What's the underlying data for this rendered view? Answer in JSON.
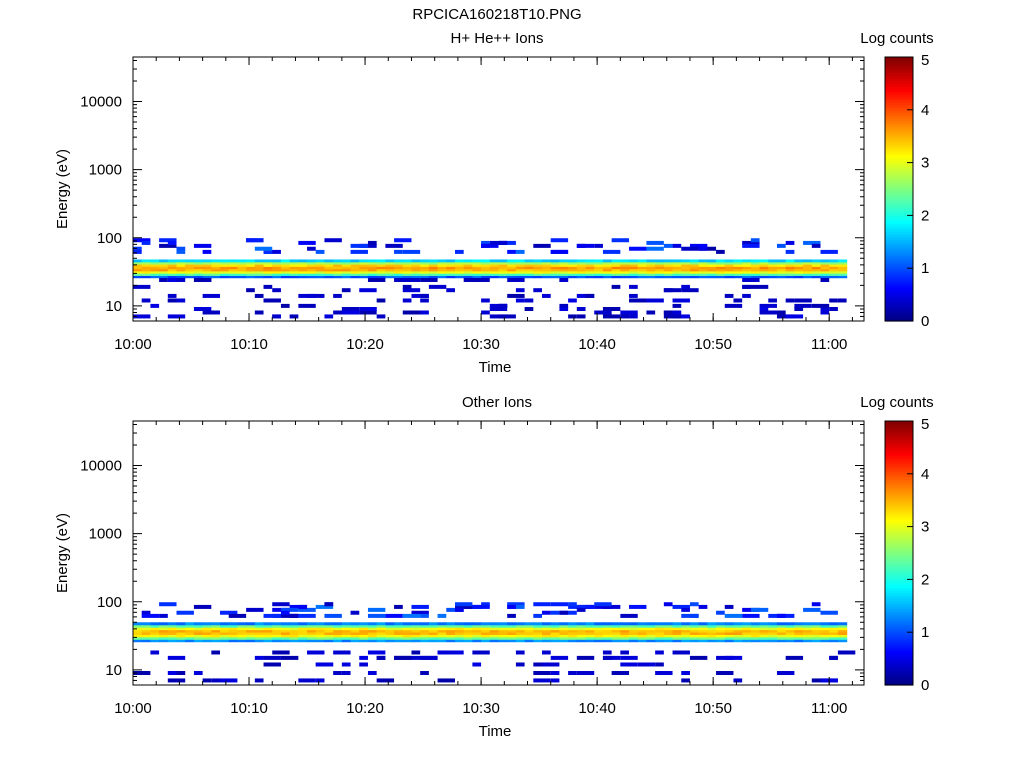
{
  "figure_title": "RPCICA160218T10.PNG",
  "chart_data": [
    {
      "type": "heatmap",
      "title": "H+ He++ Ions",
      "xlabel": "Time",
      "ylabel": "Energy (eV)",
      "x_ticks": [
        "10:00",
        "10:10",
        "10:20",
        "10:30",
        "10:40",
        "10:50",
        "11:00"
      ],
      "xlim": [
        "10:00",
        "11:03"
      ],
      "y_scale": "log",
      "y_ticks": [
        {
          "value": 10,
          "label": "10"
        },
        {
          "value": 100,
          "label": "100"
        },
        {
          "value": 1000,
          "label": "1000"
        },
        {
          "value": 10000,
          "label": "10000"
        }
      ],
      "ylim": [
        6,
        45000
      ],
      "colorbar": {
        "label": "Log counts",
        "ticks": [
          "0",
          "1",
          "2",
          "3",
          "4",
          "5"
        ],
        "range": [
          0,
          5
        ],
        "colormap": "jet"
      },
      "band": {
        "energy_eV": [
          26,
          48
        ],
        "peak_eV": 36,
        "peak_log_counts": 3.6
      },
      "sparse_energy_eV": [
        7,
        8,
        9,
        10,
        12,
        14,
        17,
        19,
        24,
        62,
        69,
        76,
        84,
        92
      ],
      "sparse_count": 200,
      "seed": 7
    },
    {
      "type": "heatmap",
      "title": "Other Ions",
      "xlabel": "Time",
      "ylabel": "Energy (eV)",
      "x_ticks": [
        "10:00",
        "10:10",
        "10:20",
        "10:30",
        "10:40",
        "10:50",
        "11:00"
      ],
      "xlim": [
        "10:00",
        "11:03"
      ],
      "y_scale": "log",
      "y_ticks": [
        {
          "value": 10,
          "label": "10"
        },
        {
          "value": 100,
          "label": "100"
        },
        {
          "value": 1000,
          "label": "1000"
        },
        {
          "value": 10000,
          "label": "10000"
        }
      ],
      "ylim": [
        6,
        45000
      ],
      "colorbar": {
        "label": "Log counts",
        "ticks": [
          "0",
          "1",
          "2",
          "3",
          "4",
          "5"
        ],
        "range": [
          0,
          5
        ],
        "colormap": "jet"
      },
      "band": {
        "energy_eV": [
          26,
          50
        ],
        "peak_eV": 36,
        "peak_log_counts": 3.5
      },
      "sparse_energy_eV": [
        7,
        9,
        12,
        15,
        18,
        62,
        69,
        76,
        84,
        92
      ],
      "sparse_count": 170,
      "seed": 13
    }
  ]
}
